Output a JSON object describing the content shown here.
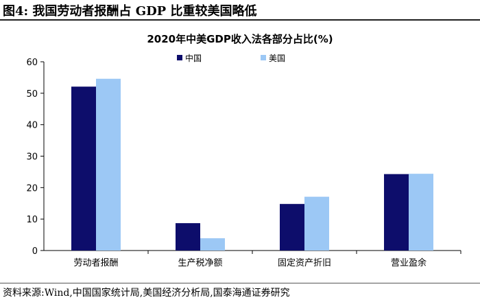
{
  "figure": {
    "label": "图4:  我国劳动者报酬占 GDP 比重较美国略低",
    "source": "资料来源:Wind,中国国家统计局,美国经济分析局,国泰海通证券研究"
  },
  "chart_data": {
    "type": "bar",
    "title": "2020年中美GDP收入法各部分占比(%)",
    "categories": [
      "劳动者报酬",
      "生产税净额",
      "固定资产折旧",
      "营业盈余"
    ],
    "series": [
      {
        "name": "中国",
        "color": "#0d0d6b",
        "values": [
          52.1,
          8.7,
          14.8,
          24.3
        ]
      },
      {
        "name": "美国",
        "color": "#9cc8f5",
        "values": [
          54.6,
          3.9,
          17.1,
          24.4
        ]
      }
    ],
    "ylim": [
      0,
      60
    ],
    "yticks": [
      0,
      10,
      20,
      30,
      40,
      50,
      60
    ],
    "xlabel": "",
    "ylabel": "",
    "legend_position": "top-center",
    "grid": false
  }
}
